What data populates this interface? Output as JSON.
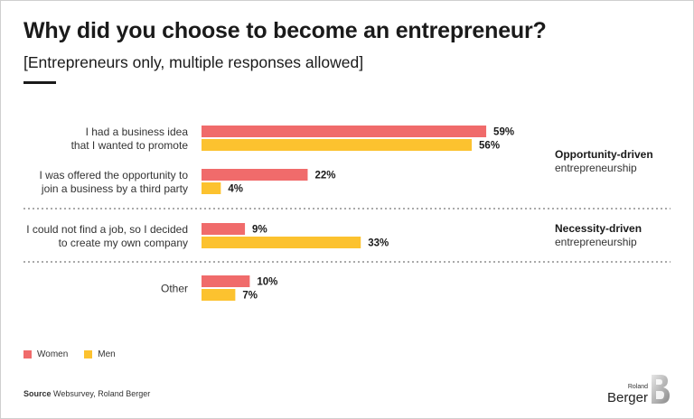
{
  "header": {
    "title": "Why did you choose to become an entrepreneur?",
    "subtitle": "[Entrepreneurs only, multiple responses allowed]"
  },
  "chart_data": {
    "type": "bar",
    "orientation": "horizontal",
    "categories": [
      [
        "I had a business idea",
        "that I wanted to promote"
      ],
      [
        "I was offered the opportunity to",
        "join a business by a third party"
      ],
      [
        "I could not find a job, so I decided",
        "to create my own company"
      ],
      [
        "Other"
      ]
    ],
    "series": [
      {
        "name": "Women",
        "values": [
          59,
          22,
          9,
          10
        ],
        "labels": [
          "59%",
          "22%",
          "9%",
          "10%"
        ],
        "color": "#f06b6b"
      },
      {
        "name": "Men",
        "values": [
          56,
          4,
          33,
          7
        ],
        "labels": [
          "56%",
          "4%",
          "33%",
          "7%"
        ],
        "color": "#fcc22f"
      }
    ],
    "groups": [
      {
        "title": "Opportunity-driven",
        "subtitle": "entrepreneurship",
        "categories": [
          0,
          1
        ]
      },
      {
        "title": "Necessity-driven",
        "subtitle": "entrepreneurship",
        "categories": [
          2
        ]
      }
    ],
    "xlim": [
      0,
      100
    ],
    "grid": false,
    "legend_position": "bottom-left"
  },
  "footer": {
    "source_label": "Source",
    "source_text": "Websurvey, Roland Berger",
    "logo_small": "Roland",
    "logo_big": "Berger"
  }
}
